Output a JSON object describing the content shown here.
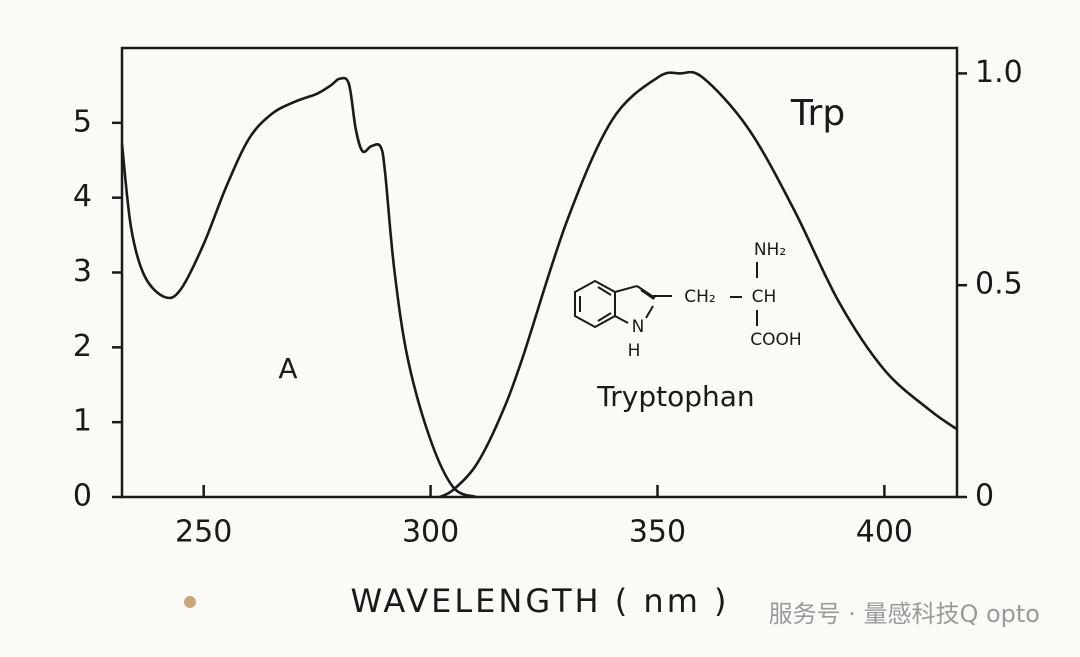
{
  "chart_data": {
    "type": "line",
    "xlabel": "WAVELENGTH  ( nm )",
    "annotations": [
      "Trp",
      "A",
      "Tryptophan"
    ],
    "structure_labels": [
      "NH₂",
      "CH₂",
      "CH",
      "COOH",
      "N",
      "H"
    ],
    "xlim": [
      232,
      416
    ],
    "xticks": [
      250,
      300,
      350,
      400
    ],
    "ylim": [
      0,
      6
    ],
    "yticks": [
      0,
      1,
      2,
      3,
      4,
      5
    ],
    "y2lim": [
      0,
      1.06
    ],
    "y2ticks": [
      0,
      0.5,
      {
        "value": 1,
        "label": "1.0"
      }
    ],
    "series": [
      {
        "color": "#1a1a1a",
        "x": [
          232,
          234,
          237,
          241.5,
          245,
          250,
          255,
          260,
          265,
          270,
          275,
          278,
          280,
          282,
          283.5,
          285,
          287,
          289,
          290,
          292,
          295,
          300,
          305,
          310
        ],
        "values": [
          4.72,
          3.6,
          2.95,
          2.67,
          2.78,
          3.38,
          4.15,
          4.79,
          5.12,
          5.28,
          5.39,
          5.5,
          5.59,
          5.52,
          4.92,
          4.62,
          4.69,
          4.68,
          4.32,
          3.04,
          1.84,
          0.76,
          0.13,
          0.0
        ]
      },
      {
        "color": "#1a1a1a",
        "axis": "y2",
        "x": [
          302,
          305,
          310,
          315,
          320,
          330,
          340,
          350,
          355,
          360,
          370,
          380,
          390,
          400,
          410,
          416
        ],
        "values": [
          0,
          0.017,
          0.075,
          0.18,
          0.32,
          0.65,
          0.89,
          0.99,
          1.0,
          0.99,
          0.87,
          0.68,
          0.46,
          0.3,
          0.205,
          0.16
        ]
      }
    ]
  },
  "watermark": "服务号 · 量感科技Q opto"
}
